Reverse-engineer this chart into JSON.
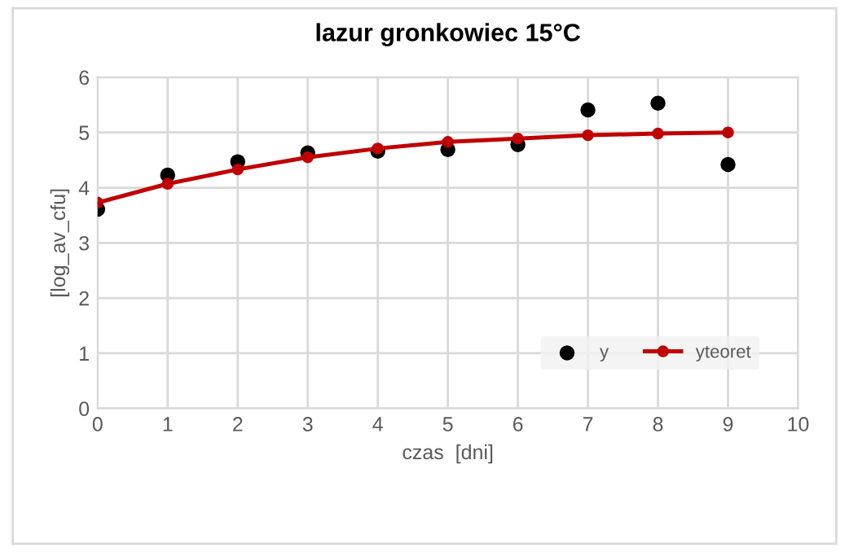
{
  "chart_data": {
    "type": "line",
    "title": "lazur gronkowiec 15°C",
    "xlabel": "czas  [dni]",
    "ylabel": "[log_av_cfu]",
    "x": [
      0,
      1,
      2,
      3,
      4,
      5,
      6,
      7,
      8,
      9
    ],
    "series": [
      {
        "name": "y",
        "type": "scatter",
        "color": "#000000",
        "marker": "circle",
        "values": [
          3.61,
          4.23,
          4.47,
          4.63,
          4.66,
          4.69,
          4.78,
          5.41,
          5.53,
          4.42
        ]
      },
      {
        "name": "yteoret",
        "color": "#c00000",
        "marker": "circle",
        "line_style": "solid",
        "values": [
          3.73,
          4.07,
          4.33,
          4.55,
          4.71,
          4.83,
          4.89,
          4.95,
          4.98,
          5.0
        ]
      }
    ],
    "xlim": [
      0,
      10
    ],
    "ylim": [
      0,
      6
    ],
    "xticks": [
      0,
      1,
      2,
      3,
      4,
      5,
      6,
      7,
      8,
      9,
      10
    ],
    "yticks": [
      0,
      1,
      2,
      3,
      4,
      5,
      6
    ],
    "grid": true,
    "legend": "bottom right"
  }
}
